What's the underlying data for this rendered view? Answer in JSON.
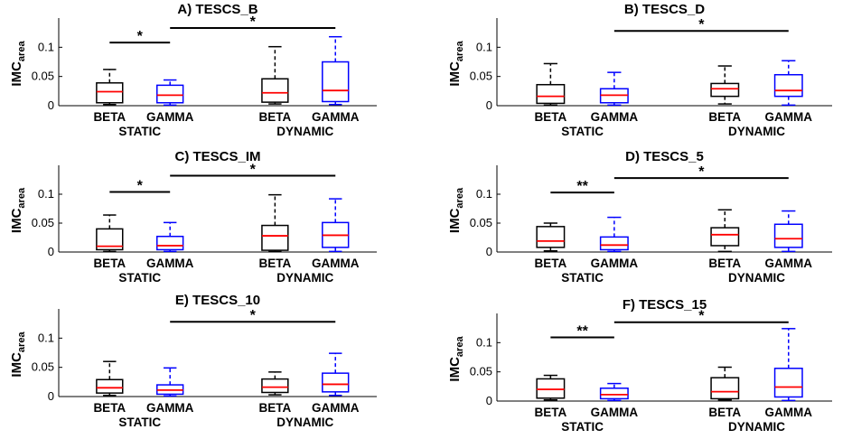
{
  "chart_data": [
    {
      "type": "box",
      "title": "A) TESCS_B",
      "ylabel": "IMC",
      "ylabel_sub": "area",
      "ylim": [
        0,
        0.15
      ],
      "yticks": [
        "0",
        "0.05",
        "0.1"
      ],
      "groups": [
        "STATIC",
        "DYNAMIC"
      ],
      "boxes": [
        {
          "label": "BETA",
          "group": "STATIC",
          "color": "#000000",
          "min": 0.002,
          "q1": 0.005,
          "median": 0.024,
          "q3": 0.039,
          "max": 0.062
        },
        {
          "label": "GAMMA",
          "group": "STATIC",
          "color": "#0000ff",
          "min": 0.001,
          "q1": 0.005,
          "median": 0.018,
          "q3": 0.035,
          "max": 0.044
        },
        {
          "label": "BETA",
          "group": "DYNAMIC",
          "color": "#000000",
          "min": 0.003,
          "q1": 0.006,
          "median": 0.022,
          "q3": 0.046,
          "max": 0.101
        },
        {
          "label": "GAMMA",
          "group": "DYNAMIC",
          "color": "#0000ff",
          "min": 0.002,
          "q1": 0.007,
          "median": 0.026,
          "q3": 0.075,
          "max": 0.118
        }
      ],
      "significance": [
        {
          "label": "*",
          "from": "STATIC BETA",
          "to": "STATIC GAMMA",
          "level": 0.108
        },
        {
          "label": "*",
          "from": "STATIC GAMMA",
          "to": "DYNAMIC GAMMA",
          "level": 0.133
        }
      ]
    },
    {
      "type": "box",
      "title": "B) TESCS_D",
      "ylabel": "IMC",
      "ylabel_sub": "area",
      "ylim": [
        0,
        0.15
      ],
      "yticks": [
        "0",
        "0.05",
        "0.1"
      ],
      "groups": [
        "STATIC",
        "DYNAMIC"
      ],
      "boxes": [
        {
          "label": "BETA",
          "group": "STATIC",
          "color": "#000000",
          "min": 0.001,
          "q1": 0.004,
          "median": 0.016,
          "q3": 0.036,
          "max": 0.072
        },
        {
          "label": "GAMMA",
          "group": "STATIC",
          "color": "#0000ff",
          "min": 0.001,
          "q1": 0.005,
          "median": 0.018,
          "q3": 0.029,
          "max": 0.057
        },
        {
          "label": "BETA",
          "group": "DYNAMIC",
          "color": "#000000",
          "min": 0.003,
          "q1": 0.016,
          "median": 0.029,
          "q3": 0.038,
          "max": 0.068
        },
        {
          "label": "GAMMA",
          "group": "DYNAMIC",
          "color": "#0000ff",
          "min": 0.001,
          "q1": 0.016,
          "median": 0.026,
          "q3": 0.053,
          "max": 0.077
        }
      ],
      "significance": [
        {
          "label": "*",
          "from": "STATIC GAMMA",
          "to": "DYNAMIC GAMMA",
          "level": 0.128
        }
      ]
    },
    {
      "type": "box",
      "title": "C) TESCS_IM",
      "ylabel": "IMC",
      "ylabel_sub": "area",
      "ylim": [
        0,
        0.15
      ],
      "yticks": [
        "0",
        "0.05",
        "0.1"
      ],
      "groups": [
        "STATIC",
        "DYNAMIC"
      ],
      "boxes": [
        {
          "label": "BETA",
          "group": "STATIC",
          "color": "#000000",
          "min": 0.001,
          "q1": 0.004,
          "median": 0.01,
          "q3": 0.04,
          "max": 0.064
        },
        {
          "label": "GAMMA",
          "group": "STATIC",
          "color": "#0000ff",
          "min": 0.001,
          "q1": 0.004,
          "median": 0.011,
          "q3": 0.027,
          "max": 0.051
        },
        {
          "label": "BETA",
          "group": "DYNAMIC",
          "color": "#000000",
          "min": 0.001,
          "q1": 0.003,
          "median": 0.028,
          "q3": 0.046,
          "max": 0.099
        },
        {
          "label": "GAMMA",
          "group": "DYNAMIC",
          "color": "#0000ff",
          "min": 0.001,
          "q1": 0.008,
          "median": 0.029,
          "q3": 0.051,
          "max": 0.092
        }
      ],
      "significance": [
        {
          "label": "*",
          "from": "STATIC BETA",
          "to": "STATIC GAMMA",
          "level": 0.104
        },
        {
          "label": "*",
          "from": "STATIC GAMMA",
          "to": "DYNAMIC GAMMA",
          "level": 0.132
        }
      ]
    },
    {
      "type": "box",
      "title": "D) TESCS_5",
      "ylabel": "IMC",
      "ylabel_sub": "area",
      "ylim": [
        0,
        0.15
      ],
      "yticks": [
        "0",
        "0.05",
        "0.1"
      ],
      "groups": [
        "STATIC",
        "DYNAMIC"
      ],
      "boxes": [
        {
          "label": "BETA",
          "group": "STATIC",
          "color": "#000000",
          "min": 0.002,
          "q1": 0.008,
          "median": 0.019,
          "q3": 0.044,
          "max": 0.05
        },
        {
          "label": "GAMMA",
          "group": "STATIC",
          "color": "#0000ff",
          "min": 0.001,
          "q1": 0.004,
          "median": 0.012,
          "q3": 0.026,
          "max": 0.06
        },
        {
          "label": "BETA",
          "group": "DYNAMIC",
          "color": "#000000",
          "min": 0.001,
          "q1": 0.011,
          "median": 0.03,
          "q3": 0.042,
          "max": 0.073
        },
        {
          "label": "GAMMA",
          "group": "DYNAMIC",
          "color": "#0000ff",
          "min": 0.001,
          "q1": 0.008,
          "median": 0.023,
          "q3": 0.048,
          "max": 0.071
        }
      ],
      "significance": [
        {
          "label": "**",
          "from": "STATIC BETA",
          "to": "STATIC GAMMA",
          "level": 0.103
        },
        {
          "label": "*",
          "from": "STATIC GAMMA",
          "to": "DYNAMIC GAMMA",
          "level": 0.128
        }
      ]
    },
    {
      "type": "box",
      "title": "E) TESCS_10",
      "ylabel": "IMC",
      "ylabel_sub": "area",
      "ylim": [
        0,
        0.15
      ],
      "yticks": [
        "0",
        "0.05",
        "0.1"
      ],
      "groups": [
        "STATIC",
        "DYNAMIC"
      ],
      "boxes": [
        {
          "label": "BETA",
          "group": "STATIC",
          "color": "#000000",
          "min": 0.002,
          "q1": 0.006,
          "median": 0.015,
          "q3": 0.029,
          "max": 0.06
        },
        {
          "label": "GAMMA",
          "group": "STATIC",
          "color": "#0000ff",
          "min": 0.001,
          "q1": 0.004,
          "median": 0.011,
          "q3": 0.02,
          "max": 0.049
        },
        {
          "label": "BETA",
          "group": "DYNAMIC",
          "color": "#000000",
          "min": 0.003,
          "q1": 0.007,
          "median": 0.016,
          "q3": 0.03,
          "max": 0.042
        },
        {
          "label": "GAMMA",
          "group": "DYNAMIC",
          "color": "#0000ff",
          "min": 0.002,
          "q1": 0.008,
          "median": 0.021,
          "q3": 0.04,
          "max": 0.074
        }
      ],
      "significance": [
        {
          "label": "*",
          "from": "STATIC GAMMA",
          "to": "DYNAMIC GAMMA",
          "level": 0.128
        }
      ]
    },
    {
      "type": "box",
      "title": "F) TESCS_15",
      "ylabel": "IMC",
      "ylabel_sub": "area",
      "ylim": [
        0,
        0.15
      ],
      "yticks": [
        "0",
        "0.05",
        "0.1"
      ],
      "groups": [
        "STATIC",
        "DYNAMIC"
      ],
      "boxes": [
        {
          "label": "BETA",
          "group": "STATIC",
          "color": "#000000",
          "min": 0.002,
          "q1": 0.005,
          "median": 0.02,
          "q3": 0.038,
          "max": 0.044
        },
        {
          "label": "GAMMA",
          "group": "STATIC",
          "color": "#0000ff",
          "min": 0.001,
          "q1": 0.004,
          "median": 0.011,
          "q3": 0.022,
          "max": 0.03
        },
        {
          "label": "BETA",
          "group": "DYNAMIC",
          "color": "#000000",
          "min": 0.002,
          "q1": 0.004,
          "median": 0.016,
          "q3": 0.04,
          "max": 0.058
        },
        {
          "label": "GAMMA",
          "group": "DYNAMIC",
          "color": "#0000ff",
          "min": 0.001,
          "q1": 0.007,
          "median": 0.024,
          "q3": 0.056,
          "max": 0.124
        }
      ],
      "significance": [
        {
          "label": "**",
          "from": "STATIC BETA",
          "to": "STATIC GAMMA",
          "level": 0.109
        },
        {
          "label": "*",
          "from": "STATIC GAMMA",
          "to": "DYNAMIC GAMMA",
          "level": 0.135
        }
      ]
    }
  ]
}
